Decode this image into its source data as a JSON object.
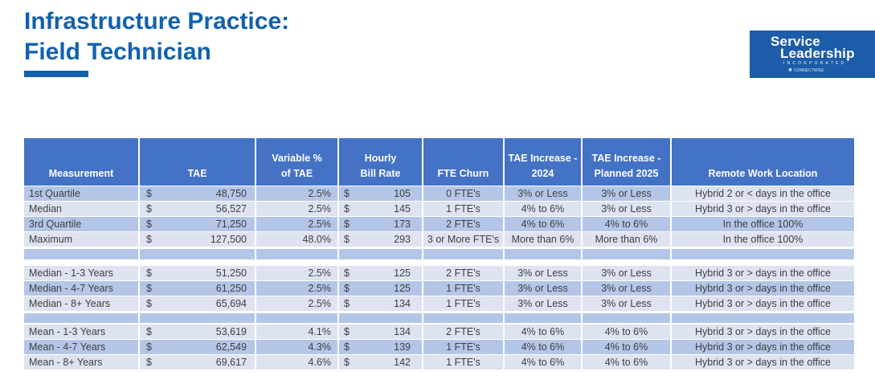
{
  "page": {
    "title_line1": "Infrastructure Practice:",
    "title_line2": "Field Technician"
  },
  "logo": {
    "word1": "Service",
    "word2": "Leadership",
    "word3": "INCORPORATED",
    "tagline": "CONNECTWISE"
  },
  "colors": {
    "title_blue": "#1261AE",
    "logo_bg": "#1C5CA9",
    "table_header_bg": "#4472C4",
    "band_dark": "#B4C6E7",
    "band_light": "#DDE3F0"
  },
  "table": {
    "currency_symbol": "$",
    "columns": [
      {
        "id": "measurement",
        "label": "Measurement"
      },
      {
        "id": "tae",
        "label": "TAE"
      },
      {
        "id": "variable",
        "label": "Variable %\nof TAE"
      },
      {
        "id": "rate",
        "label": "Hourly\nBill Rate"
      },
      {
        "id": "fte",
        "label": "FTE Churn"
      },
      {
        "id": "increase_2024",
        "label": "TAE Increase -\n2024"
      },
      {
        "id": "increase_2025",
        "label": "TAE Increase -\nPlanned 2025"
      },
      {
        "id": "remote",
        "label": "Remote Work Location"
      }
    ],
    "groups": [
      {
        "rows": [
          {
            "measurement": "1st Quartile",
            "tae": "48,750",
            "variable": "2.5%",
            "rate": "105",
            "fte": "0 FTE's",
            "increase_2024": "3% or Less",
            "increase_2025": "3% or Less",
            "remote": "Hybrid 2 or < days in the office"
          },
          {
            "measurement": "Median",
            "tae": "56,527",
            "variable": "2.5%",
            "rate": "145",
            "fte": "1 FTE's",
            "increase_2024": "4% to 6%",
            "increase_2025": "3% or Less",
            "remote": "Hybrid 3 or > days in the office"
          },
          {
            "measurement": "3rd Quartile",
            "tae": "71,250",
            "variable": "2.5%",
            "rate": "173",
            "fte": "2 FTE's",
            "increase_2024": "4% to 6%",
            "increase_2025": "4% to 6%",
            "remote": "In the office 100%"
          },
          {
            "measurement": "Maximum",
            "tae": "127,500",
            "variable": "48.0%",
            "rate": "293",
            "fte": "3 or More FTE's",
            "increase_2024": "More than 6%",
            "increase_2025": "More than 6%",
            "remote": "In the office 100%"
          }
        ]
      },
      {
        "rows": [
          {
            "measurement": "Median - 1-3 Years",
            "tae": "51,250",
            "variable": "2.5%",
            "rate": "125",
            "fte": "2 FTE's",
            "increase_2024": "3% or Less",
            "increase_2025": "3% or Less",
            "remote": "Hybrid 3 or > days in the office"
          },
          {
            "measurement": "Median - 4-7 Years",
            "tae": "61,250",
            "variable": "2.5%",
            "rate": "125",
            "fte": "1 FTE's",
            "increase_2024": "3% or Less",
            "increase_2025": "3% or Less",
            "remote": "Hybrid 3 or > days in the office"
          },
          {
            "measurement": "Median - 8+ Years",
            "tae": "65,694",
            "variable": "2.5%",
            "rate": "134",
            "fte": "1 FTE's",
            "increase_2024": "3% or Less",
            "increase_2025": "3% or Less",
            "remote": "Hybrid 3 or > days in the office"
          }
        ]
      },
      {
        "rows": [
          {
            "measurement": "Mean - 1-3 Years",
            "tae": "53,619",
            "variable": "4.1%",
            "rate": "134",
            "fte": "2 FTE's",
            "increase_2024": "4% to 6%",
            "increase_2025": "4% to 6%",
            "remote": "Hybrid 3 or > days in the office"
          },
          {
            "measurement": "Mean - 4-7 Years",
            "tae": "62,549",
            "variable": "4.3%",
            "rate": "139",
            "fte": "1 FTE's",
            "increase_2024": "4% to 6%",
            "increase_2025": "4% to 6%",
            "remote": "Hybrid 3 or > days in the office"
          },
          {
            "measurement": "Mean - 8+ Years",
            "tae": "69,617",
            "variable": "4.6%",
            "rate": "142",
            "fte": "1 FTE's",
            "increase_2024": "4% to 6%",
            "increase_2025": "4% to 6%",
            "remote": "Hybrid 3 or > days in the office"
          }
        ]
      }
    ]
  }
}
